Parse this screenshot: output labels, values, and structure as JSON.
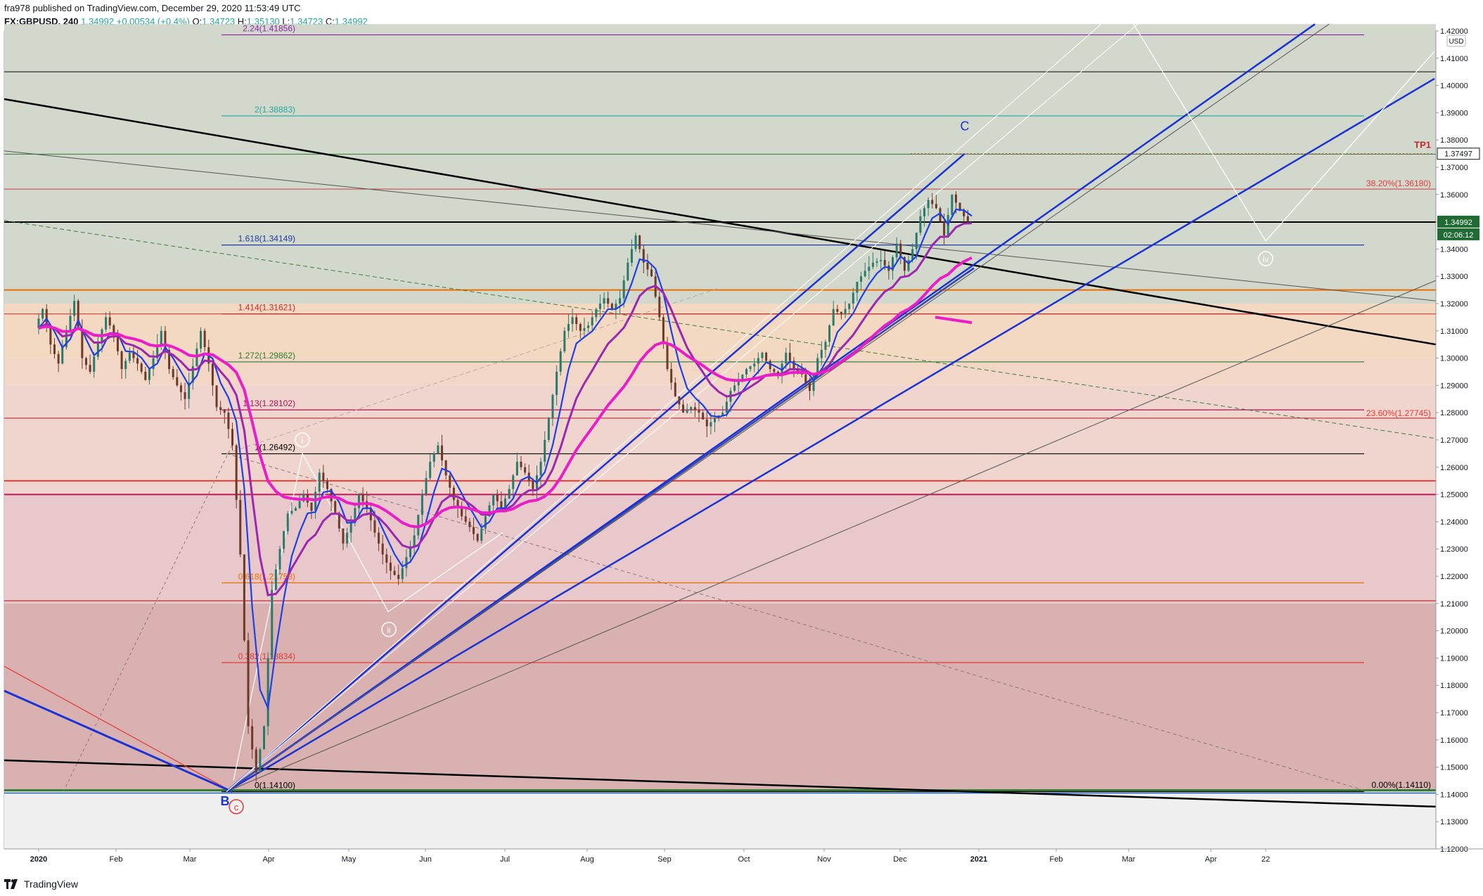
{
  "header": {
    "published_line": "fra978 published on TradingView.com, December 29, 2020 11:53:49 UTC",
    "symbol": "FX:GBPUSD, 240",
    "last": "1.34992",
    "change": "+0.00534 (+0.4%)",
    "open_label": "O:",
    "open": "1.34723",
    "high_label": "H:",
    "high": "1.35130",
    "low_label": "L:",
    "low": "1.34723",
    "close_label": "C:",
    "close": "1.34992"
  },
  "footer": {
    "brand": "TradingView"
  },
  "colors": {
    "up": "#26a69a",
    "candle": "#6d3a2a",
    "ema_fast": "#2962ff",
    "ema_slow": "#9c27b0",
    "ema_long": "#e91ec8",
    "trend_blue": "#1a33d6",
    "fib_green": "#2e7d5a"
  },
  "chart_data": {
    "type": "candlestick",
    "title": "",
    "currency": "USD",
    "ylim": [
      1.12,
      1.42
    ],
    "x_tick_labels": [
      "2020",
      "Feb",
      "Mar",
      "Apr",
      "May",
      "Jun",
      "Jul",
      "Aug",
      "Sep",
      "Oct",
      "Nov",
      "Dec",
      "2021",
      "Feb",
      "Mar",
      "Apr",
      "22"
    ],
    "y_tick_labels": [
      "1.42000",
      "1.41000",
      "1.40000",
      "1.39000",
      "1.38000",
      "1.37000",
      "1.36000",
      "1.35000",
      "1.34000",
      "1.33000",
      "1.32000",
      "1.31000",
      "1.30000",
      "1.29000",
      "1.28000",
      "1.27000",
      "1.26000",
      "1.25000",
      "1.24000",
      "1.23000",
      "1.22000",
      "1.21000",
      "1.20000",
      "1.19000",
      "1.18000",
      "1.17000",
      "1.16000",
      "1.15000",
      "1.14000",
      "1.13000",
      "1.12000"
    ],
    "price_label": "1.34992",
    "countdown_label": "02:06:12",
    "target_label": "1.37497",
    "tp_label": "TP1",
    "fib_extension_labels": [
      {
        "text": "2.24(1.41856)",
        "value": 1.41856,
        "color": "#8e24aa"
      },
      {
        "text": "2(1.38883)",
        "value": 1.38883,
        "color": "#26a69a"
      },
      {
        "text": "1.618(1.34149)",
        "value": 1.34149,
        "color": "#1e3aa8"
      },
      {
        "text": "1.414(1.31621)",
        "value": 1.31621,
        "color": "#c62828"
      },
      {
        "text": "1.272(1.29862)",
        "value": 1.29862,
        "color": "#2e7d32"
      },
      {
        "text": "1.13(1.28102)",
        "value": 1.28102,
        "color": "#ad1457"
      },
      {
        "text": "1(1.26492)",
        "value": 1.26492,
        "color": "#000000"
      },
      {
        "text": "0.618(1.21758)",
        "value": 1.21758,
        "color": "#ef6c00"
      },
      {
        "text": "0.382(1.18834)",
        "value": 1.18834,
        "color": "#e53935"
      },
      {
        "text": "0(1.14100)",
        "value": 1.141,
        "color": "#000000"
      }
    ],
    "fib_retracement_labels": [
      {
        "text": "38.20%(1.36180)",
        "value": 1.3618,
        "color": "#e53935"
      },
      {
        "text": "23.60%(1.27745)",
        "value": 1.27745,
        "color": "#e53935"
      },
      {
        "text": "0.00%(1.14110)",
        "value": 1.1411,
        "color": "#000000"
      }
    ],
    "wave_labels": [
      "B",
      "c",
      "i",
      "ii",
      "iv",
      "C"
    ],
    "series": [
      {
        "name": "",
        "points": [
          [
            0,
            1.311
          ],
          [
            2,
            1.318
          ],
          [
            4,
            1.305
          ],
          [
            6,
            1.298
          ],
          [
            8,
            1.31
          ],
          [
            10,
            1.321
          ],
          [
            12,
            1.3
          ],
          [
            14,
            1.295
          ],
          [
            16,
            1.306
          ],
          [
            18,
            1.315
          ],
          [
            20,
            1.309
          ],
          [
            22,
            1.296
          ],
          [
            24,
            1.302
          ],
          [
            26,
            1.298
          ],
          [
            28,
            1.292
          ],
          [
            30,
            1.3
          ],
          [
            32,
            1.31
          ],
          [
            34,
            1.296
          ],
          [
            36,
            1.29
          ],
          [
            38,
            1.285
          ],
          [
            40,
            1.297
          ],
          [
            42,
            1.31
          ],
          [
            44,
            1.298
          ],
          [
            46,
            1.282
          ],
          [
            48,
            1.28
          ],
          [
            50,
            1.268
          ],
          [
            52,
            1.228
          ],
          [
            54,
            1.165
          ],
          [
            56,
            1.148
          ],
          [
            58,
            1.165
          ],
          [
            60,
            1.215
          ],
          [
            62,
            1.23
          ],
          [
            64,
            1.243
          ],
          [
            66,
            1.245
          ],
          [
            68,
            1.25
          ],
          [
            70,
            1.244
          ],
          [
            72,
            1.258
          ],
          [
            74,
            1.252
          ],
          [
            76,
            1.243
          ],
          [
            78,
            1.232
          ],
          [
            80,
            1.24
          ],
          [
            82,
            1.25
          ],
          [
            84,
            1.245
          ],
          [
            86,
            1.236
          ],
          [
            88,
            1.228
          ],
          [
            90,
            1.222
          ],
          [
            92,
            1.219
          ],
          [
            94,
            1.227
          ],
          [
            96,
            1.235
          ],
          [
            98,
            1.25
          ],
          [
            100,
            1.262
          ],
          [
            102,
            1.268
          ],
          [
            104,
            1.257
          ],
          [
            106,
            1.248
          ],
          [
            108,
            1.242
          ],
          [
            110,
            1.238
          ],
          [
            112,
            1.233
          ],
          [
            114,
            1.242
          ],
          [
            116,
            1.25
          ],
          [
            118,
            1.245
          ],
          [
            120,
            1.252
          ],
          [
            122,
            1.262
          ],
          [
            124,
            1.258
          ],
          [
            126,
            1.252
          ],
          [
            128,
            1.262
          ],
          [
            130,
            1.278
          ],
          [
            132,
            1.295
          ],
          [
            134,
            1.31
          ],
          [
            136,
            1.315
          ],
          [
            138,
            1.31
          ],
          [
            140,
            1.312
          ],
          [
            142,
            1.318
          ],
          [
            144,
            1.322
          ],
          [
            146,
            1.318
          ],
          [
            148,
            1.322
          ],
          [
            150,
            1.335
          ],
          [
            152,
            1.345
          ],
          [
            154,
            1.335
          ],
          [
            156,
            1.33
          ],
          [
            158,
            1.315
          ],
          [
            160,
            1.296
          ],
          [
            162,
            1.286
          ],
          [
            164,
            1.28
          ],
          [
            166,
            1.282
          ],
          [
            168,
            1.28
          ],
          [
            170,
            1.275
          ],
          [
            172,
            1.278
          ],
          [
            174,
            1.28
          ],
          [
            176,
            1.288
          ],
          [
            178,
            1.292
          ],
          [
            180,
            1.296
          ],
          [
            182,
            1.298
          ],
          [
            184,
            1.302
          ],
          [
            186,
            1.296
          ],
          [
            188,
            1.294
          ],
          [
            190,
            1.302
          ],
          [
            192,
            1.296
          ],
          [
            194,
            1.294
          ],
          [
            196,
            1.288
          ],
          [
            198,
            1.3
          ],
          [
            200,
            1.306
          ],
          [
            202,
            1.318
          ],
          [
            204,
            1.316
          ],
          [
            206,
            1.32
          ],
          [
            208,
            1.328
          ],
          [
            210,
            1.332
          ],
          [
            212,
            1.335
          ],
          [
            214,
            1.336
          ],
          [
            216,
            1.332
          ],
          [
            218,
            1.342
          ],
          [
            220,
            1.332
          ],
          [
            222,
            1.34
          ],
          [
            224,
            1.352
          ],
          [
            226,
            1.358
          ],
          [
            228,
            1.355
          ],
          [
            230,
            1.345
          ],
          [
            232,
            1.36
          ],
          [
            234,
            1.354
          ],
          [
            236,
            1.35
          ]
        ]
      }
    ]
  }
}
